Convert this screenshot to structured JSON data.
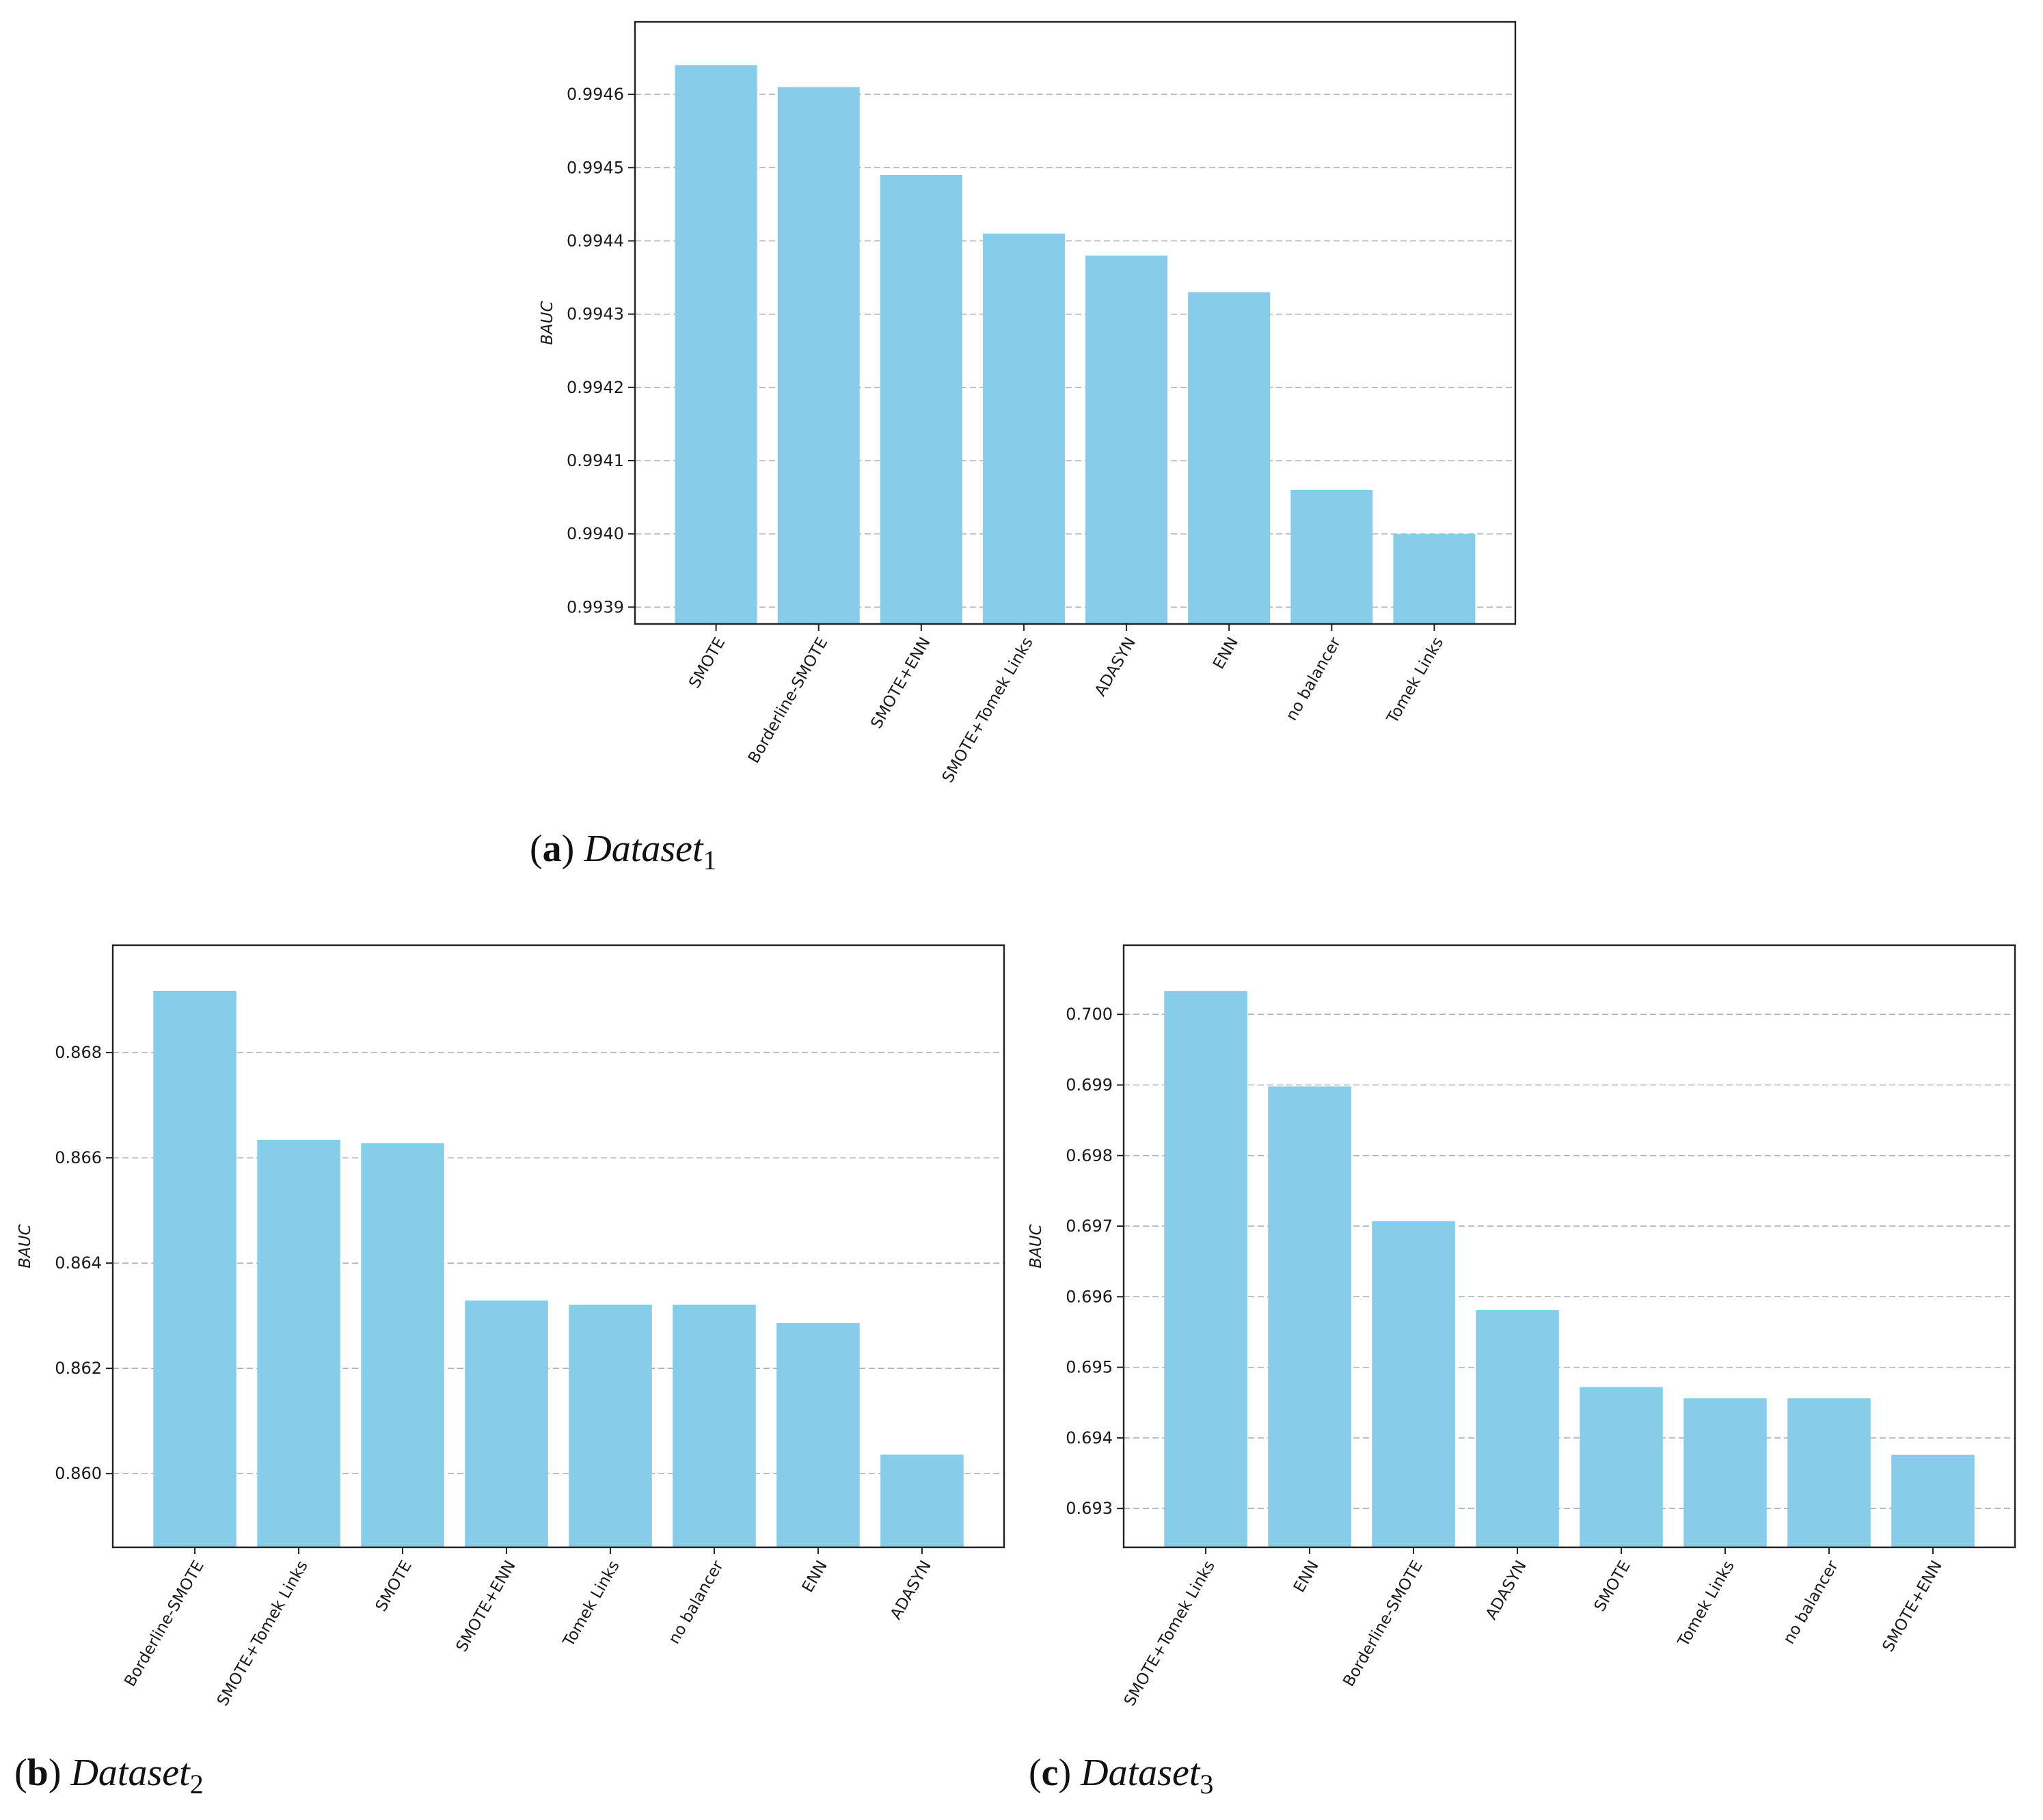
{
  "figure": {
    "captions": [
      {
        "tag": "a",
        "name": "Dataset",
        "sub": "1"
      },
      {
        "tag": "b",
        "name": "Dataset",
        "sub": "2"
      },
      {
        "tag": "c",
        "name": "Dataset",
        "sub": "3"
      }
    ]
  },
  "colors": {
    "bar": "#87CDE9",
    "axis": "#222222",
    "grid": "#b0b0b0",
    "text": "#1a1a1a"
  },
  "chart_data": [
    {
      "type": "bar",
      "title": "(a) Dataset1",
      "xlabel": "",
      "ylabel": "BAUC",
      "categories": [
        "SMOTE",
        "Borderline-SMOTE",
        "SMOTE+ENN",
        "SMOTE+Tomek Links",
        "ADASYN",
        "ENN",
        "no balancer",
        "Tomek Links"
      ],
      "values": [
        0.99464,
        0.99461,
        0.99449,
        0.99441,
        0.99438,
        0.99433,
        0.99406,
        0.994
      ],
      "ylim": [
        0.993877,
        0.994699
      ],
      "yticks": [
        0.9939,
        0.994,
        0.9941,
        0.9942,
        0.9943,
        0.9944,
        0.9945,
        0.9946
      ],
      "ytick_labels": [
        "0.9939",
        "0.9940",
        "0.9941",
        "0.9942",
        "0.9943",
        "0.9944",
        "0.9945",
        "0.9946"
      ],
      "grid": "y-dashed",
      "legend": null
    },
    {
      "type": "bar",
      "title": "(b) Dataset2",
      "xlabel": "",
      "ylabel": "BAUC",
      "categories": [
        "Borderline-SMOTE",
        "SMOTE+Tomek Links",
        "SMOTE",
        "SMOTE+ENN",
        "Tomek Links",
        "no balancer",
        "ENN",
        "ADASYN"
      ],
      "values": [
        0.86917,
        0.86634,
        0.86628,
        0.86329,
        0.86321,
        0.86321,
        0.86286,
        0.86036
      ],
      "ylim": [
        0.8586,
        0.87004
      ],
      "yticks": [
        0.86,
        0.862,
        0.864,
        0.866,
        0.868
      ],
      "ytick_labels": [
        "0.860",
        "0.862",
        "0.864",
        "0.866",
        "0.868"
      ],
      "grid": "y-dashed",
      "legend": null
    },
    {
      "type": "bar",
      "title": "(c) Dataset3",
      "xlabel": "",
      "ylabel": "BAUC",
      "categories": [
        "SMOTE+Tomek Links",
        "ENN",
        "Borderline-SMOTE",
        "ADASYN",
        "SMOTE",
        "Tomek Links",
        "no balancer",
        "SMOTE+ENN"
      ],
      "values": [
        0.70033,
        0.69898,
        0.69707,
        0.69581,
        0.69472,
        0.69456,
        0.69456,
        0.69376
      ],
      "ylim": [
        0.69245,
        0.70098
      ],
      "yticks": [
        0.693,
        0.694,
        0.695,
        0.696,
        0.697,
        0.698,
        0.699,
        0.7
      ],
      "ytick_labels": [
        "0.693",
        "0.694",
        "0.695",
        "0.696",
        "0.697",
        "0.698",
        "0.699",
        "0.700"
      ],
      "grid": "y-dashed",
      "legend": null
    }
  ]
}
